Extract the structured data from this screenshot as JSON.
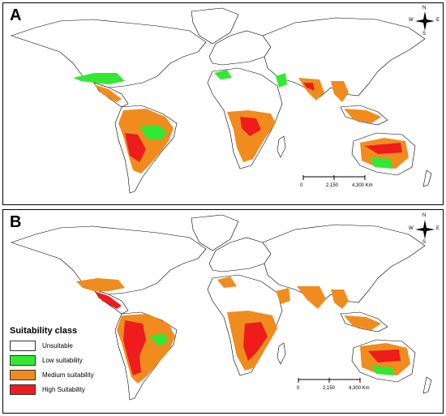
{
  "panels": [
    {
      "label": "A"
    },
    {
      "label": "B"
    }
  ],
  "scale_bar": {
    "ticks": [
      "0",
      "2,150",
      "4,300 Km"
    ]
  },
  "compass": {
    "north": "N",
    "south": "S",
    "east": "E",
    "west": "W"
  },
  "legend": {
    "title": "Suitability class",
    "items": [
      {
        "label": "Unsuitable",
        "color": "#ffffff"
      },
      {
        "label": "Low suitability",
        "color": "#33e833"
      },
      {
        "label": "Medium suitability",
        "color": "#f08c1e"
      },
      {
        "label": "High Suitability",
        "color": "#ee1c1c"
      }
    ]
  },
  "colors": {
    "unsuitable": "#ffffff",
    "low": "#33e833",
    "medium": "#f08c1e",
    "high": "#ee1c1c",
    "border": "#000000"
  }
}
